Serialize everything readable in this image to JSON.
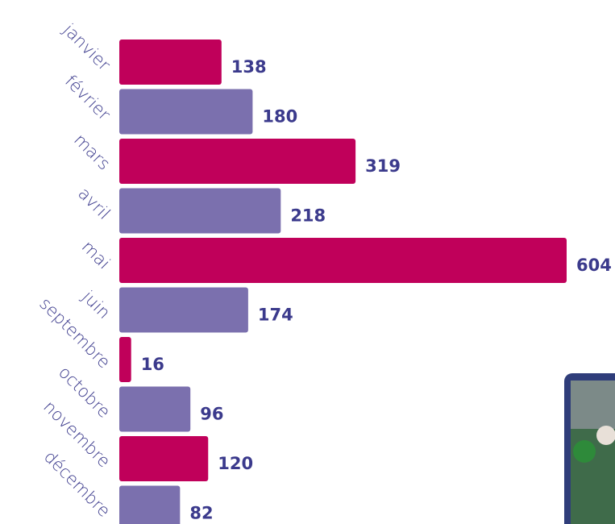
{
  "chart_data": {
    "type": "bar",
    "orientation": "horizontal",
    "categories": [
      "janvier",
      "février",
      "mars",
      "avril",
      "mai",
      "juin",
      "septembre",
      "octobre",
      "novembre",
      "décembre"
    ],
    "values": [
      138,
      180,
      319,
      218,
      604,
      174,
      16,
      96,
      120,
      82
    ],
    "colors": [
      "#c0005a",
      "#7b70ae",
      "#c0005a",
      "#7b70ae",
      "#c0005a",
      "#7b70ae",
      "#c0005a",
      "#7b70ae",
      "#c0005a",
      "#7b70ae"
    ]
  }
}
